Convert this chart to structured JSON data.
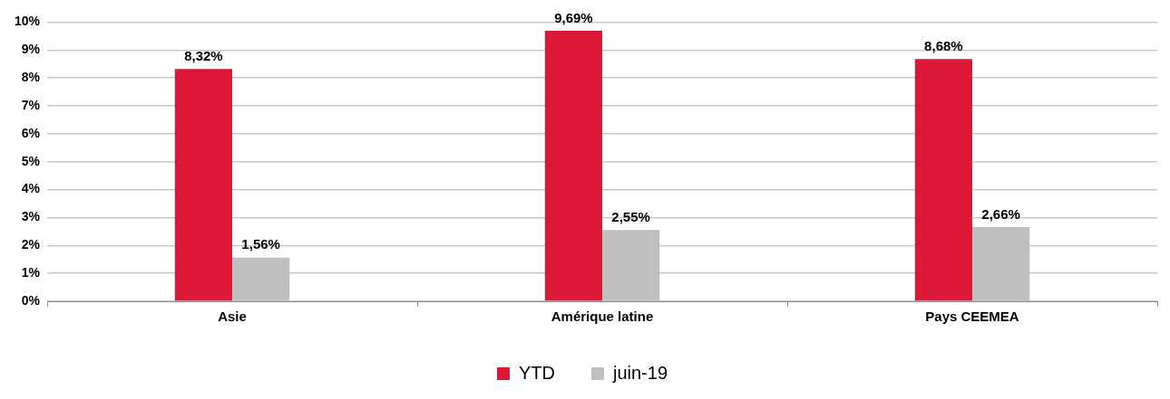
{
  "chart_data": {
    "type": "bar",
    "categories": [
      "Asie",
      "Amérique latine",
      "Pays CEEMEA"
    ],
    "series": [
      {
        "name": "YTD",
        "color": "#dc1836",
        "values": [
          8.32,
          9.69,
          8.68
        ],
        "value_labels": [
          "8,32%",
          "9,69%",
          "8,68%"
        ]
      },
      {
        "name": "juin-19",
        "color": "#bfbfbf",
        "values": [
          1.56,
          2.55,
          2.66
        ],
        "value_labels": [
          "1,56%",
          "2,55%",
          "2,66%"
        ]
      }
    ],
    "ylim": [
      0,
      10
    ],
    "yticks": [
      {
        "value": 0,
        "label": "0%"
      },
      {
        "value": 1,
        "label": "1%"
      },
      {
        "value": 2,
        "label": "2%"
      },
      {
        "value": 3,
        "label": "3%"
      },
      {
        "value": 4,
        "label": "4%"
      },
      {
        "value": 5,
        "label": "5%"
      },
      {
        "value": 6,
        "label": "6%"
      },
      {
        "value": 7,
        "label": "7%"
      },
      {
        "value": 8,
        "label": "8%"
      },
      {
        "value": 9,
        "label": "9%"
      },
      {
        "value": 10,
        "label": "10%"
      }
    ],
    "grid": "y",
    "legend": "bottom"
  }
}
